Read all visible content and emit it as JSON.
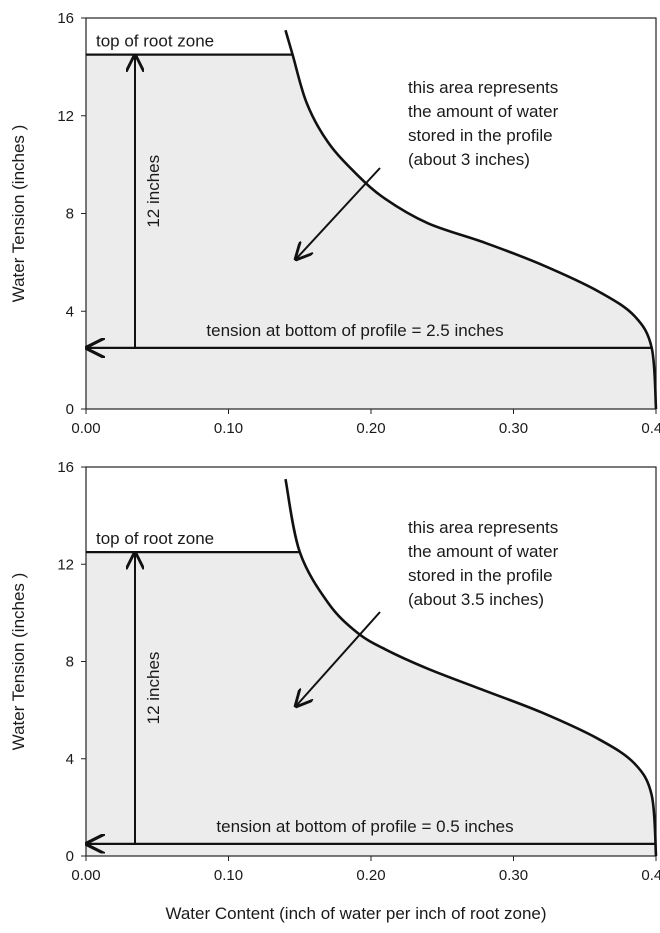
{
  "figure": {
    "xlabel": "Water Content (inch of water per inch of root zone)",
    "colors": {
      "fill": "#ececec",
      "ink": "#111111",
      "background": "#ffffff"
    }
  },
  "chart_data": [
    {
      "type": "area",
      "ylabel": "Water Tension (inches )",
      "xlim": [
        0,
        0.4
      ],
      "ylim": [
        0,
        16
      ],
      "xticks": [
        "0.00",
        "0.10",
        "0.20",
        "0.30",
        "0.40"
      ],
      "yticks": [
        "0",
        "4",
        "8",
        "12",
        "16"
      ],
      "grid": false,
      "curve": {
        "x": [
          0.14,
          0.145,
          0.155,
          0.17,
          0.19,
          0.21,
          0.24,
          0.28,
          0.32,
          0.36,
          0.385,
          0.397,
          0.4
        ],
        "y": [
          15.5,
          14.5,
          12.5,
          10.9,
          9.6,
          8.6,
          7.6,
          6.8,
          5.9,
          4.8,
          3.8,
          2.5,
          0
        ]
      },
      "top_of_root_zone": 14.5,
      "bottom_tension": 2.5,
      "annotations": {
        "top_label": "top of root zone",
        "depth_label": "12 inches",
        "bottom_label": "tension at bottom of profile = 2.5 inches",
        "area_note": [
          "this area represents",
          "the amount of water",
          "stored in the profile",
          "(about 3 inches)"
        ]
      }
    },
    {
      "type": "area",
      "ylabel": "Water Tension (inches )",
      "xlim": [
        0,
        0.4
      ],
      "ylim": [
        0,
        16
      ],
      "xticks": [
        "0.00",
        "0.10",
        "0.20",
        "0.30",
        "0.40"
      ],
      "yticks": [
        "0",
        "4",
        "8",
        "12",
        "16"
      ],
      "grid": false,
      "curve": {
        "x": [
          0.14,
          0.15,
          0.17,
          0.19,
          0.21,
          0.24,
          0.28,
          0.32,
          0.36,
          0.385,
          0.397,
          0.4
        ],
        "y": [
          15.5,
          12.5,
          10.4,
          9.2,
          8.5,
          7.7,
          6.8,
          5.9,
          4.8,
          3.8,
          2.5,
          0
        ]
      },
      "top_of_root_zone": 12.5,
      "bottom_tension": 0.5,
      "annotations": {
        "top_label": "top of root zone",
        "depth_label": "12 inches",
        "bottom_label": "tension at bottom of profile = 0.5 inches",
        "area_note": [
          "this area represents",
          "the amount of water",
          "stored in the profile",
          "(about 3.5 inches)"
        ]
      }
    }
  ]
}
